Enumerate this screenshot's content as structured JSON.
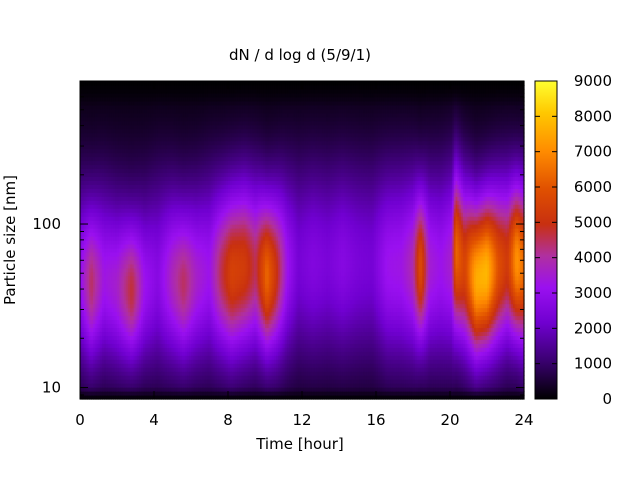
{
  "chart_data": {
    "type": "heatmap",
    "title": "dN / d log d (5/9/1)",
    "xlabel": "Time [hour]",
    "ylabel": "Particle size [nm]",
    "xlim": [
      0,
      24
    ],
    "xticks": [
      0,
      4,
      8,
      12,
      16,
      20,
      24
    ],
    "ylim": [
      8.5,
      750
    ],
    "yscale": "log",
    "yticks": [
      {
        "value": 10,
        "label": "10"
      },
      {
        "value": 100,
        "label": "100"
      }
    ],
    "colorbar": {
      "range": [
        0,
        9000
      ],
      "ticks": [
        0,
        1000,
        2000,
        3000,
        4000,
        5000,
        6000,
        7000,
        8000,
        9000
      ],
      "colormap": [
        "#000000",
        "#5a00a8",
        "#a020f0",
        "#c83010",
        "#ff8000",
        "#ffe000",
        "#ffff40"
      ]
    },
    "time_profile": [
      {
        "t": 0.0,
        "peak": 1800,
        "d": 45,
        "w": 0.35
      },
      {
        "t": 0.6,
        "peak": 3300,
        "d": 42,
        "w": 0.33
      },
      {
        "t": 1.3,
        "peak": 2100,
        "d": 45,
        "w": 0.35
      },
      {
        "t": 2.0,
        "peak": 2400,
        "d": 40,
        "w": 0.33
      },
      {
        "t": 2.8,
        "peak": 3600,
        "d": 38,
        "w": 0.3
      },
      {
        "t": 3.5,
        "peak": 2000,
        "d": 40,
        "w": 0.33
      },
      {
        "t": 4.2,
        "peak": 1500,
        "d": 45,
        "w": 0.38
      },
      {
        "t": 5.0,
        "peak": 2600,
        "d": 45,
        "w": 0.35
      },
      {
        "t": 5.6,
        "peak": 3300,
        "d": 42,
        "w": 0.33
      },
      {
        "t": 6.3,
        "peak": 2400,
        "d": 45,
        "w": 0.35
      },
      {
        "t": 7.0,
        "peak": 2000,
        "d": 50,
        "w": 0.38
      },
      {
        "t": 7.6,
        "peak": 3300,
        "d": 50,
        "w": 0.36
      },
      {
        "t": 8.2,
        "peak": 4300,
        "d": 50,
        "w": 0.36
      },
      {
        "t": 8.9,
        "peak": 4100,
        "d": 55,
        "w": 0.36
      },
      {
        "t": 9.5,
        "peak": 3300,
        "d": 55,
        "w": 0.36
      },
      {
        "t": 10.1,
        "peak": 5200,
        "d": 48,
        "w": 0.33
      },
      {
        "t": 10.6,
        "peak": 3900,
        "d": 50,
        "w": 0.35
      },
      {
        "t": 11.2,
        "peak": 2000,
        "d": 55,
        "w": 0.38
      },
      {
        "t": 11.8,
        "peak": 1100,
        "d": 60,
        "w": 0.4
      },
      {
        "t": 12.6,
        "peak": 1400,
        "d": 60,
        "w": 0.4
      },
      {
        "t": 13.4,
        "peak": 1200,
        "d": 60,
        "w": 0.4
      },
      {
        "t": 14.2,
        "peak": 1500,
        "d": 60,
        "w": 0.4
      },
      {
        "t": 15.0,
        "peak": 1200,
        "d": 60,
        "w": 0.4
      },
      {
        "t": 15.8,
        "peak": 1100,
        "d": 60,
        "w": 0.4
      },
      {
        "t": 16.6,
        "peak": 2000,
        "d": 55,
        "w": 0.4
      },
      {
        "t": 17.4,
        "peak": 2100,
        "d": 55,
        "w": 0.4
      },
      {
        "t": 18.0,
        "peak": 2700,
        "d": 55,
        "w": 0.38
      },
      {
        "t": 18.4,
        "peak": 4700,
        "d": 55,
        "w": 0.33
      },
      {
        "t": 18.9,
        "peak": 2300,
        "d": 55,
        "w": 0.38
      },
      {
        "t": 19.5,
        "peak": 2000,
        "d": 55,
        "w": 0.4
      },
      {
        "t": 20.1,
        "peak": 2400,
        "d": 60,
        "w": 0.4
      },
      {
        "t": 20.3,
        "peak": 5200,
        "d": 70,
        "w": 0.36
      },
      {
        "t": 20.8,
        "peak": 4300,
        "d": 55,
        "w": 0.36
      },
      {
        "t": 21.4,
        "peak": 6400,
        "d": 45,
        "w": 0.33
      },
      {
        "t": 22.0,
        "peak": 6600,
        "d": 50,
        "w": 0.33
      },
      {
        "t": 22.6,
        "peak": 4700,
        "d": 55,
        "w": 0.35
      },
      {
        "t": 23.1,
        "peak": 4000,
        "d": 60,
        "w": 0.35
      },
      {
        "t": 23.6,
        "peak": 6000,
        "d": 60,
        "w": 0.33
      },
      {
        "t": 24.0,
        "peak": 5200,
        "d": 55,
        "w": 0.35
      }
    ]
  }
}
